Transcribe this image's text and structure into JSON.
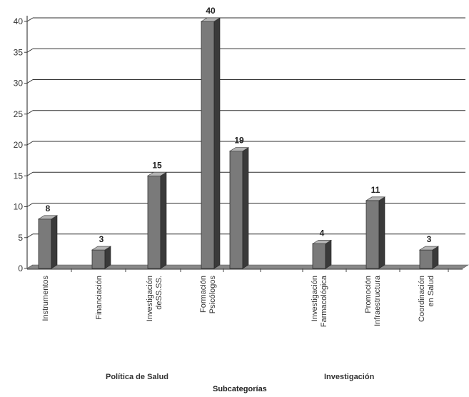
{
  "chart_data": {
    "type": "bar",
    "categories": [
      "Instrumentos",
      "Financiación",
      "Investigación deSS.SS.",
      "Formación Psicólogos",
      "",
      "",
      "Investigación Farmacológica",
      "Promoción Infraestructura",
      "Coordinación en Salud"
    ],
    "values": [
      8,
      3,
      15,
      40,
      19,
      null,
      4,
      11,
      3
    ],
    "data_labels": [
      "8",
      "3",
      "15",
      "40",
      "19",
      "",
      "4",
      "11",
      "3"
    ],
    "y_ticks": [
      "0",
      "5",
      "10",
      "15",
      "20",
      "25",
      "30",
      "35",
      "40"
    ],
    "ylim": [
      0,
      40
    ],
    "grid": true,
    "xlabel": "Subcategorías",
    "ylabel": "",
    "groups": [
      "Política de Salud",
      "Investigación"
    ],
    "colors": {
      "bar": "#7a7a7a",
      "bar_side": "#3a3a3a",
      "bar_top": "#b5b5b5",
      "grid": "#2f2f2f",
      "floor": "#8a8a8a"
    }
  }
}
